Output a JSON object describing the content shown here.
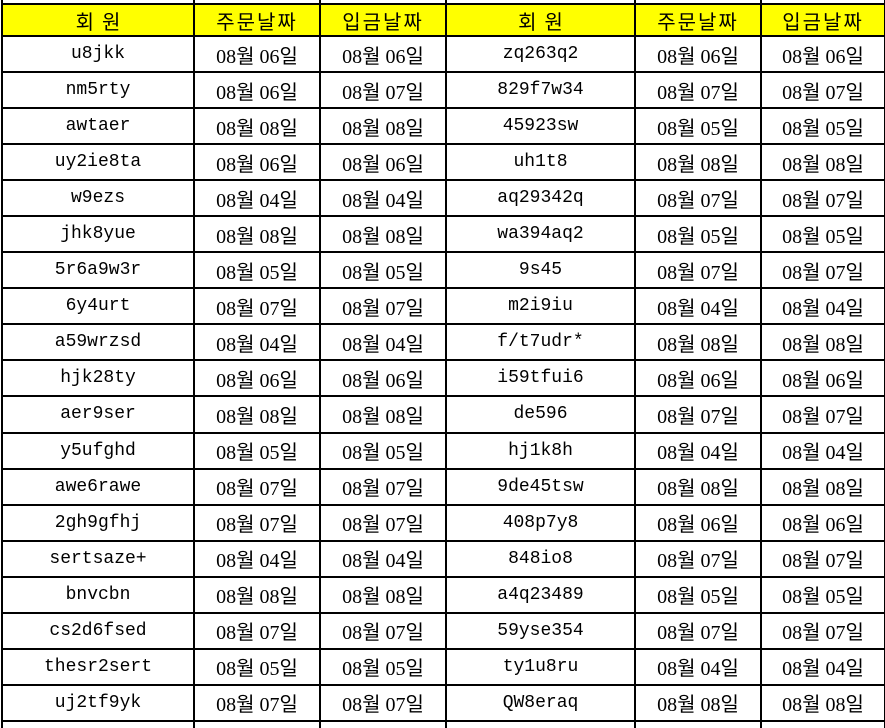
{
  "sheet": {
    "header_bg": "#FFFF00",
    "border_color": "#000000",
    "headers": [
      "회원",
      "주문날짜",
      "입금날짜",
      "회원",
      "주문날짜",
      "입금날짜"
    ],
    "rows": [
      [
        "u8jkk",
        "08월 06일",
        "08월 06일",
        "zq263q2",
        "08월 06일",
        "08월 06일"
      ],
      [
        "nm5rty",
        "08월 06일",
        "08월 07일",
        "829f7w34",
        "08월 07일",
        "08월 07일"
      ],
      [
        "awtaer",
        "08월 08일",
        "08월 08일",
        "45923sw",
        "08월 05일",
        "08월 05일"
      ],
      [
        "uy2ie8ta",
        "08월 06일",
        "08월 06일",
        "uh1t8",
        "08월 08일",
        "08월 08일"
      ],
      [
        "w9ezs",
        "08월 04일",
        "08월 04일",
        "aq29342q",
        "08월 07일",
        "08월 07일"
      ],
      [
        "jhk8yue",
        "08월 08일",
        "08월 08일",
        "wa394aq2",
        "08월 05일",
        "08월 05일"
      ],
      [
        "5r6a9w3r",
        "08월 05일",
        "08월 05일",
        "9s45",
        "08월 07일",
        "08월 07일"
      ],
      [
        "6y4urt",
        "08월 07일",
        "08월 07일",
        "m2i9iu",
        "08월 04일",
        "08월 04일"
      ],
      [
        "a59wrzsd",
        "08월 04일",
        "08월 04일",
        "f/t7udr*",
        "08월 08일",
        "08월 08일"
      ],
      [
        "hjk28ty",
        "08월 06일",
        "08월 06일",
        "i59tfui6",
        "08월 06일",
        "08월 06일"
      ],
      [
        "aer9ser",
        "08월 08일",
        "08월 08일",
        "de596",
        "08월 07일",
        "08월 07일"
      ],
      [
        "y5ufghd",
        "08월 05일",
        "08월 05일",
        "hj1k8h",
        "08월 04일",
        "08월 04일"
      ],
      [
        "awe6rawe",
        "08월 07일",
        "08월 07일",
        "9de45tsw",
        "08월 08일",
        "08월 08일"
      ],
      [
        "2gh9gfhj",
        "08월 07일",
        "08월 07일",
        "408p7y8",
        "08월 06일",
        "08월 06일"
      ],
      [
        "sertsaze+",
        "08월 04일",
        "08월 04일",
        "848io8",
        "08월 07일",
        "08월 07일"
      ],
      [
        "bnvcbn",
        "08월 08일",
        "08월 08일",
        "a4q23489",
        "08월 05일",
        "08월 05일"
      ],
      [
        "cs2d6fsed",
        "08월 07일",
        "08월 07일",
        "59yse354",
        "08월 07일",
        "08월 07일"
      ],
      [
        "thesr2sert",
        "08월 05일",
        "08월 05일",
        "ty1u8ru",
        "08월 04일",
        "08월 04일"
      ],
      [
        "uj2tf9yk",
        "08월 07일",
        "08월 07일",
        "QW8eraq",
        "08월 08일",
        "08월 08일"
      ]
    ]
  }
}
